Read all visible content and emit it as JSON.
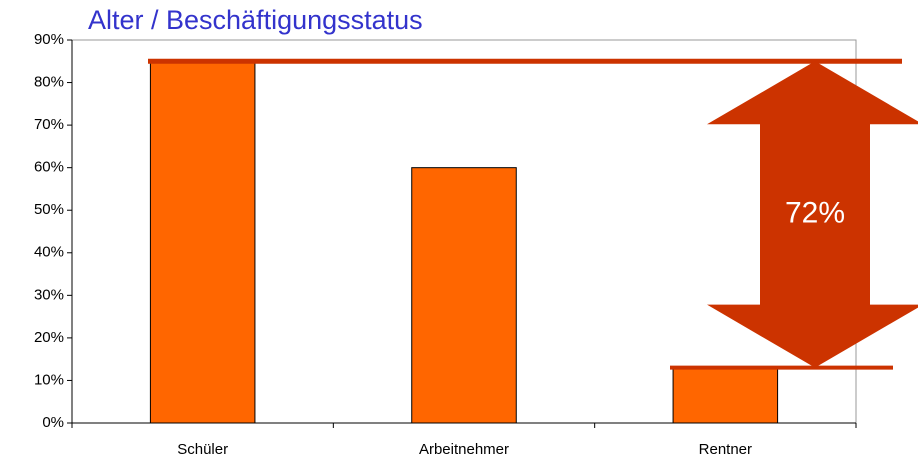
{
  "chart_data": {
    "type": "bar",
    "title": "Alter / Beschäftigungsstatus",
    "categories": [
      "Schüler",
      "Arbeitnehmer",
      "Rentner"
    ],
    "values": [
      85,
      60,
      13
    ],
    "color": "#ff6600",
    "ylim": [
      0,
      90
    ],
    "yticks": [
      {
        "value": 0,
        "label": "0%"
      },
      {
        "value": 10,
        "label": "10%"
      },
      {
        "value": 20,
        "label": "20%"
      },
      {
        "value": 30,
        "label": "30%"
      },
      {
        "value": 40,
        "label": "40%"
      },
      {
        "value": 50,
        "label": "50%"
      },
      {
        "value": 60,
        "label": "60%"
      },
      {
        "value": 70,
        "label": "70%"
      },
      {
        "value": 80,
        "label": "80%"
      },
      {
        "value": 90,
        "label": "90%"
      }
    ],
    "grid": false,
    "annotation": "72%",
    "annotation_color": "#cc3300"
  }
}
